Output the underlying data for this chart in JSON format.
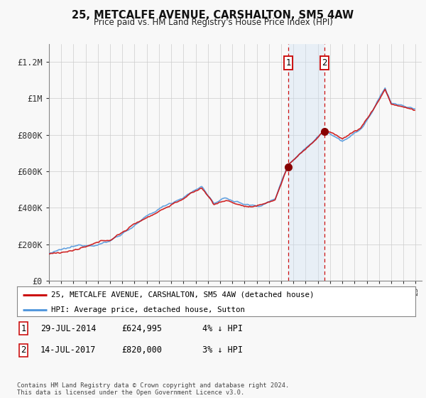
{
  "title": "25, METCALFE AVENUE, CARSHALTON, SM5 4AW",
  "subtitle": "Price paid vs. HM Land Registry's House Price Index (HPI)",
  "legend_line1": "25, METCALFE AVENUE, CARSHALTON, SM5 4AW (detached house)",
  "legend_line2": "HPI: Average price, detached house, Sutton",
  "annotation1_date": "29-JUL-2014",
  "annotation1_price": "£624,995",
  "annotation1_pct": "4% ↓ HPI",
  "annotation1_year": 2014.58,
  "annotation1_val": 624995,
  "annotation2_date": "14-JUL-2017",
  "annotation2_price": "£820,000",
  "annotation2_pct": "3% ↓ HPI",
  "annotation2_year": 2017.54,
  "annotation2_val": 820000,
  "footer": "Contains HM Land Registry data © Crown copyright and database right 2024.\nThis data is licensed under the Open Government Licence v3.0.",
  "hpi_color": "#5599dd",
  "price_color": "#cc1111",
  "dot_color": "#880000",
  "background_color": "#f8f8f8",
  "shade_color": "#cce0f5",
  "grid_color": "#cccccc",
  "ylim": [
    0,
    1300000
  ],
  "yticks": [
    0,
    200000,
    400000,
    600000,
    800000,
    1000000,
    1200000
  ],
  "ytick_labels": [
    "£0",
    "£200K",
    "£400K",
    "£600K",
    "£800K",
    "£1M",
    "£1.2M"
  ],
  "xstart": 1995,
  "xend": 2025
}
